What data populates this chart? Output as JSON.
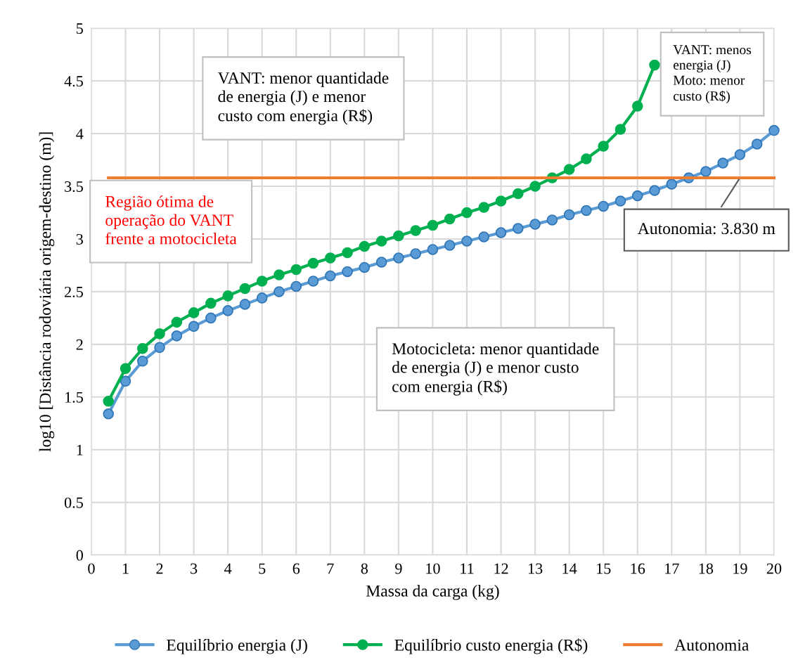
{
  "chart_data": {
    "type": "line",
    "xlabel": "Massa da carga (kg)",
    "ylabel": "log10 [Distância rodoviária origem-destino (m)]",
    "x": [
      0.5,
      1,
      1.5,
      2,
      2.5,
      3,
      3.5,
      4,
      4.5,
      5,
      5.5,
      6,
      6.5,
      7,
      7.5,
      8,
      8.5,
      9,
      9.5,
      10,
      10.5,
      11,
      11.5,
      12,
      12.5,
      13,
      13.5,
      14,
      14.5,
      15,
      15.5,
      16,
      16.5,
      17,
      17.5,
      18,
      18.5,
      19,
      19.5,
      20
    ],
    "series": [
      {
        "name": "Equilíbrio energia (J)",
        "color": "#5b9bd5",
        "values": [
          1.34,
          1.65,
          1.84,
          1.97,
          2.08,
          2.17,
          2.25,
          2.32,
          2.38,
          2.44,
          2.5,
          2.55,
          2.6,
          2.65,
          2.69,
          2.73,
          2.78,
          2.82,
          2.86,
          2.9,
          2.94,
          2.98,
          3.02,
          3.06,
          3.1,
          3.14,
          3.18,
          3.23,
          3.27,
          3.31,
          3.36,
          3.41,
          3.46,
          3.52,
          3.58,
          3.64,
          3.72,
          3.8,
          3.9,
          4.03
        ]
      },
      {
        "name": "Equilíbrio custo energia (R$)",
        "color": "#00b050",
        "values": [
          1.46,
          1.77,
          1.96,
          2.1,
          2.21,
          2.3,
          2.39,
          2.46,
          2.53,
          2.6,
          2.66,
          2.71,
          2.77,
          2.82,
          2.87,
          2.93,
          2.98,
          3.03,
          3.08,
          3.13,
          3.19,
          3.25,
          3.3,
          3.36,
          3.43,
          3.5,
          3.58,
          3.66,
          3.76,
          3.88,
          4.04,
          4.26,
          4.65,
          null,
          null,
          null,
          null,
          null,
          null,
          null
        ]
      },
      {
        "name": "Autonomia",
        "color": "#ed7d31",
        "type": "line",
        "marker": "none",
        "x": [
          0.5,
          20
        ],
        "values": [
          3.58,
          3.58
        ]
      }
    ],
    "xlim": [
      0,
      20
    ],
    "xticks": [
      0,
      1,
      2,
      3,
      4,
      5,
      6,
      7,
      8,
      9,
      10,
      11,
      12,
      13,
      14,
      15,
      16,
      17,
      18,
      19,
      20
    ],
    "ylim": [
      0,
      5
    ],
    "yticks": [
      0,
      0.5,
      1,
      1.5,
      2,
      2.5,
      3,
      3.5,
      4,
      4.5,
      5
    ],
    "grid": true,
    "legend": "bottom",
    "marker": "circle",
    "annotations": [
      "VANT: menor quantidade\nde energia (J) e menor\ncusto com energia (R$)",
      "Região ótima de\noperação do VANT\nfrente a motocicleta",
      "Motocicleta: menor quantidade\nde energia (J) e menor custo\ncom energia (R$)",
      "VANT: menos\nenergia (J)\nMoto: menor\ncusto (R$)",
      {
        "text": "Autonomia: 3.830 m",
        "x": 19,
        "y": 3.58
      }
    ]
  }
}
